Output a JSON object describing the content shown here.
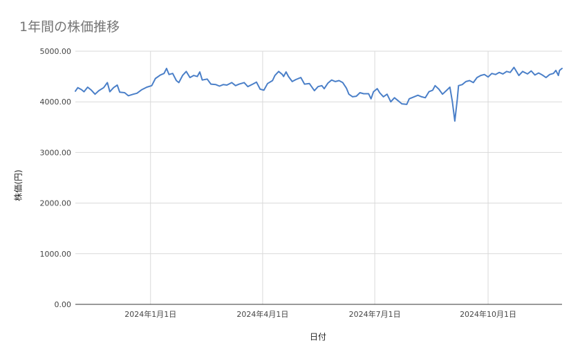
{
  "chart_data": {
    "type": "line",
    "title": "1年間の株価推移",
    "xlabel": "日付",
    "ylabel": "株価(円)",
    "ylim": [
      0,
      5000
    ],
    "yticks": [
      "0.00",
      "1000.00",
      "2000.00",
      "3000.00",
      "4000.00",
      "5000.00"
    ],
    "xtick_labels": [
      "2024年1月1日",
      "2024年4月1日",
      "2024年7月1日",
      "2024年10月1日"
    ],
    "xtick_dates": [
      "2024-01-01",
      "2024-04-01",
      "2024-07-01",
      "2024-10-01"
    ],
    "x_range": [
      "2023-11-01",
      "2024-11-30"
    ],
    "grid": true,
    "series": [
      {
        "color": "#4a7fc8",
        "points": [
          [
            "2023-11-01",
            4210
          ],
          [
            "2023-11-03",
            4280
          ],
          [
            "2023-11-06",
            4240
          ],
          [
            "2023-11-08",
            4200
          ],
          [
            "2023-11-11",
            4290
          ],
          [
            "2023-11-14",
            4230
          ],
          [
            "2023-11-17",
            4150
          ],
          [
            "2023-11-20",
            4220
          ],
          [
            "2023-11-24",
            4280
          ],
          [
            "2023-11-27",
            4380
          ],
          [
            "2023-11-29",
            4200
          ],
          [
            "2023-12-02",
            4280
          ],
          [
            "2023-12-05",
            4330
          ],
          [
            "2023-12-07",
            4190
          ],
          [
            "2023-12-11",
            4180
          ],
          [
            "2023-12-14",
            4120
          ],
          [
            "2023-12-18",
            4150
          ],
          [
            "2023-12-21",
            4170
          ],
          [
            "2023-12-25",
            4240
          ],
          [
            "2023-12-29",
            4290
          ],
          [
            "2024-01-02",
            4320
          ],
          [
            "2024-01-05",
            4460
          ],
          [
            "2024-01-09",
            4530
          ],
          [
            "2024-01-12",
            4560
          ],
          [
            "2024-01-14",
            4660
          ],
          [
            "2024-01-16",
            4540
          ],
          [
            "2024-01-19",
            4560
          ],
          [
            "2024-01-22",
            4420
          ],
          [
            "2024-01-24",
            4380
          ],
          [
            "2024-01-27",
            4520
          ],
          [
            "2024-01-30",
            4600
          ],
          [
            "2024-02-02",
            4480
          ],
          [
            "2024-02-05",
            4520
          ],
          [
            "2024-02-08",
            4500
          ],
          [
            "2024-02-10",
            4590
          ],
          [
            "2024-02-12",
            4430
          ],
          [
            "2024-02-16",
            4450
          ],
          [
            "2024-02-19",
            4350
          ],
          [
            "2024-02-23",
            4340
          ],
          [
            "2024-02-26",
            4310
          ],
          [
            "2024-02-29",
            4340
          ],
          [
            "2024-03-03",
            4330
          ],
          [
            "2024-03-07",
            4380
          ],
          [
            "2024-03-10",
            4320
          ],
          [
            "2024-03-13",
            4350
          ],
          [
            "2024-03-17",
            4380
          ],
          [
            "2024-03-20",
            4300
          ],
          [
            "2024-03-24",
            4350
          ],
          [
            "2024-03-27",
            4390
          ],
          [
            "2024-03-30",
            4250
          ],
          [
            "2024-04-02",
            4230
          ],
          [
            "2024-04-05",
            4360
          ],
          [
            "2024-04-09",
            4420
          ],
          [
            "2024-04-11",
            4520
          ],
          [
            "2024-04-14",
            4600
          ],
          [
            "2024-04-17",
            4540
          ],
          [
            "2024-04-18",
            4500
          ],
          [
            "2024-04-20",
            4590
          ],
          [
            "2024-04-22",
            4500
          ],
          [
            "2024-04-25",
            4400
          ],
          [
            "2024-04-28",
            4440
          ],
          [
            "2024-05-02",
            4480
          ],
          [
            "2024-05-05",
            4350
          ],
          [
            "2024-05-09",
            4360
          ],
          [
            "2024-05-13",
            4220
          ],
          [
            "2024-05-16",
            4300
          ],
          [
            "2024-05-19",
            4320
          ],
          [
            "2024-05-21",
            4260
          ],
          [
            "2024-05-24",
            4370
          ],
          [
            "2024-05-27",
            4430
          ],
          [
            "2024-05-30",
            4400
          ],
          [
            "2024-06-02",
            4420
          ],
          [
            "2024-06-05",
            4380
          ],
          [
            "2024-06-08",
            4270
          ],
          [
            "2024-06-10",
            4150
          ],
          [
            "2024-06-13",
            4100
          ],
          [
            "2024-06-16",
            4110
          ],
          [
            "2024-06-19",
            4180
          ],
          [
            "2024-06-22",
            4160
          ],
          [
            "2024-06-26",
            4160
          ],
          [
            "2024-06-28",
            4060
          ],
          [
            "2024-06-30",
            4200
          ],
          [
            "2024-07-03",
            4260
          ],
          [
            "2024-07-05",
            4180
          ],
          [
            "2024-07-08",
            4100
          ],
          [
            "2024-07-11",
            4150
          ],
          [
            "2024-07-14",
            4000
          ],
          [
            "2024-07-17",
            4080
          ],
          [
            "2024-07-20",
            4020
          ],
          [
            "2024-07-23",
            3960
          ],
          [
            "2024-07-27",
            3950
          ],
          [
            "2024-07-29",
            4060
          ],
          [
            "2024-08-02",
            4100
          ],
          [
            "2024-08-05",
            4130
          ],
          [
            "2024-08-08",
            4100
          ],
          [
            "2024-08-11",
            4080
          ],
          [
            "2024-08-14",
            4200
          ],
          [
            "2024-08-17",
            4230
          ],
          [
            "2024-08-19",
            4320
          ],
          [
            "2024-08-22",
            4250
          ],
          [
            "2024-08-25",
            4150
          ],
          [
            "2024-08-28",
            4220
          ],
          [
            "2024-08-31",
            4290
          ],
          [
            "2024-09-02",
            4000
          ],
          [
            "2024-09-04",
            3620
          ],
          [
            "2024-09-06",
            4050
          ],
          [
            "2024-09-07",
            4320
          ],
          [
            "2024-09-10",
            4340
          ],
          [
            "2024-09-13",
            4400
          ],
          [
            "2024-09-16",
            4420
          ],
          [
            "2024-09-19",
            4380
          ],
          [
            "2024-09-22",
            4480
          ],
          [
            "2024-09-25",
            4520
          ],
          [
            "2024-09-28",
            4540
          ],
          [
            "2024-10-01",
            4490
          ],
          [
            "2024-10-04",
            4560
          ],
          [
            "2024-10-07",
            4540
          ],
          [
            "2024-10-10",
            4580
          ],
          [
            "2024-10-13",
            4550
          ],
          [
            "2024-10-16",
            4600
          ],
          [
            "2024-10-19",
            4580
          ],
          [
            "2024-10-22",
            4680
          ],
          [
            "2024-10-26",
            4520
          ],
          [
            "2024-10-29",
            4600
          ],
          [
            "2024-11-02",
            4550
          ],
          [
            "2024-11-05",
            4610
          ],
          [
            "2024-11-08",
            4530
          ],
          [
            "2024-11-11",
            4570
          ],
          [
            "2024-11-14",
            4530
          ],
          [
            "2024-11-17",
            4480
          ],
          [
            "2024-11-20",
            4540
          ],
          [
            "2024-11-23",
            4560
          ],
          [
            "2024-11-25",
            4620
          ],
          [
            "2024-11-27",
            4520
          ],
          [
            "2024-11-28",
            4620
          ],
          [
            "2024-11-30",
            4660
          ]
        ]
      }
    ]
  }
}
